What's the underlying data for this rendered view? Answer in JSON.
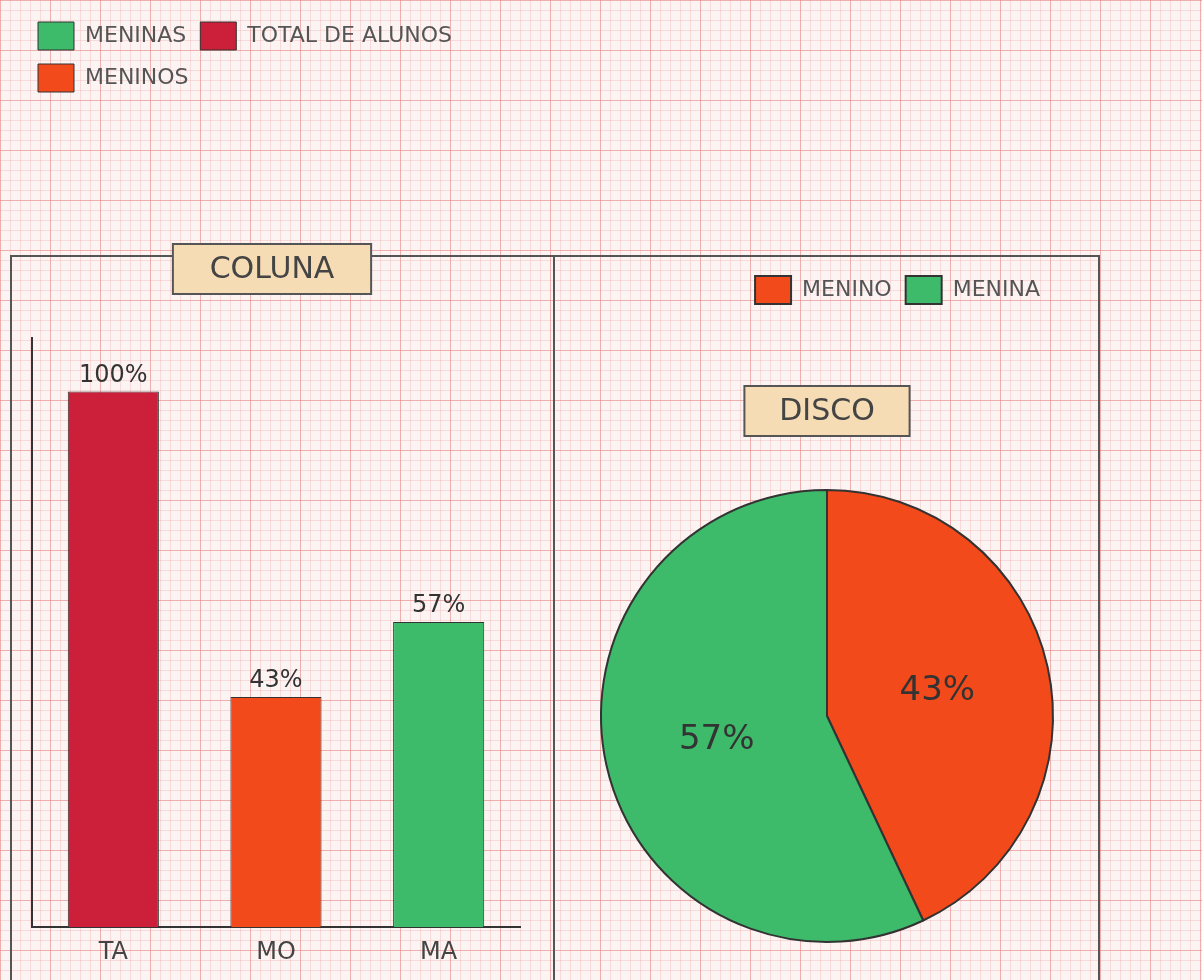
{
  "chart_data": [
    {
      "type": "bar",
      "title": "COLUNA",
      "categories": [
        "TA",
        "MO",
        "MA"
      ],
      "series": [
        {
          "name": "MENINAS",
          "color": "#3dba6a",
          "values": [
            null,
            null,
            57
          ],
          "value_labels": [
            null,
            null,
            "57%"
          ]
        },
        {
          "name": "TOTAL DE ALUNOS",
          "color": "#cc1f3a",
          "values": [
            100,
            null,
            null
          ],
          "value_labels": [
            "100%",
            null,
            null
          ]
        },
        {
          "name": "MENINOS",
          "color": "#f24a1a",
          "values": [
            null,
            43,
            null
          ],
          "value_labels": [
            null,
            "43%",
            null
          ]
        }
      ],
      "stacked": true,
      "ylim": [
        0,
        110
      ],
      "tick_labels": "x",
      "grid": false,
      "data_labels": true,
      "legend": "top-left"
    },
    {
      "type": "pie",
      "title": "DISCO",
      "categories": [
        "MENINO",
        "MENINA"
      ],
      "values": [
        43,
        57
      ],
      "colors": [
        "#f24a1a",
        "#3dba6a"
      ],
      "value_labels": [
        "43%",
        "57%"
      ],
      "data_labels": true,
      "legend": "top-right"
    }
  ]
}
